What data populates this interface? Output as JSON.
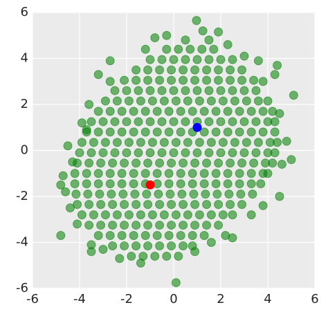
{
  "chart_data": {
    "type": "scatter",
    "xlim": [
      -6,
      6
    ],
    "ylim": [
      -6,
      6
    ],
    "xticks": [
      -6,
      -4,
      -2,
      0,
      2,
      4,
      6
    ],
    "yticks": [
      -6,
      -4,
      -2,
      0,
      2,
      4,
      6
    ],
    "grid": true,
    "alpha": 0.55,
    "series": [
      {
        "color": "#008000",
        "x": [
          -0.3,
          0.2,
          0.7,
          1.2,
          1.7,
          -1.0,
          -0.5,
          0,
          0.5,
          1,
          1.5,
          2,
          2.5,
          -1.6,
          -1.1,
          -0.6,
          -0.1,
          0.4,
          0.9,
          1.4,
          1.9,
          2.4,
          2.9,
          -2.1,
          -1.6,
          -1.1,
          -0.6,
          -0.1,
          0.4,
          0.9,
          1.4,
          1.9,
          2.4,
          2.9,
          3.4,
          -2.5,
          -2,
          -1.5,
          -1,
          -0.5,
          0,
          0.5,
          1,
          1.5,
          2,
          2.5,
          3,
          3.5,
          -2.9,
          -2.4,
          -1.9,
          -1.4,
          -0.9,
          -0.4,
          0.1,
          0.6,
          1.1,
          1.6,
          2.1,
          2.6,
          3.1,
          3.6,
          4.0,
          -3.2,
          -2.7,
          -2.2,
          -1.7,
          -1.2,
          -0.7,
          -0.2,
          0.3,
          0.8,
          1.3,
          1.8,
          2.3,
          2.8,
          3.3,
          3.8,
          4.2,
          -3.5,
          -3,
          -2.5,
          -2,
          -1.5,
          -1,
          -0.5,
          0,
          0.5,
          1,
          1.5,
          2,
          2.5,
          3,
          3.5,
          4,
          4.3,
          -3.7,
          -3.2,
          -2.7,
          -2.2,
          -1.7,
          -1.2,
          -0.7,
          -0.2,
          0.3,
          0.8,
          1.3,
          1.8,
          2.3,
          2.8,
          3.3,
          3.8,
          4.3,
          -3.9,
          -3.4,
          -2.9,
          -2.4,
          -1.9,
          -1.4,
          -0.9,
          -0.4,
          0.1,
          0.6,
          1.1,
          1.6,
          2.1,
          2.6,
          3.1,
          3.6,
          4.1,
          4.4,
          -4,
          -3.5,
          -3,
          -2.5,
          -2,
          -1.5,
          -1,
          -0.5,
          0,
          0.5,
          1,
          1.5,
          2,
          2.5,
          3,
          3.5,
          4,
          4.3,
          -4.1,
          -3.6,
          -3.1,
          -2.6,
          -2.1,
          -1.6,
          -1.1,
          -0.6,
          -0.1,
          0.4,
          0.9,
          1.4,
          1.9,
          2.4,
          2.9,
          3.4,
          3.9,
          4.2,
          -4.2,
          -3.7,
          -3.2,
          -2.7,
          -2.2,
          -1.7,
          -1.2,
          -0.7,
          -0.2,
          0.3,
          0.8,
          1.3,
          1.8,
          2.3,
          2.8,
          3.3,
          3.8,
          4.0,
          -4.2,
          -3.7,
          -3.2,
          -2.7,
          -2.2,
          -1.7,
          -1.2,
          -0.7,
          -0.2,
          0.3,
          0.8,
          1.3,
          1.8,
          2.3,
          2.8,
          3.3,
          3.7,
          -4.15,
          -3.65,
          -3.15,
          -2.65,
          -2.15,
          -1.65,
          -1.15,
          -0.65,
          -0.15,
          0.35,
          0.85,
          1.35,
          1.85,
          2.35,
          2.85,
          3.35,
          -4.1,
          -3.6,
          -3.1,
          -2.6,
          -2.1,
          -1.6,
          -1.1,
          -0.6,
          -0.1,
          0.4,
          0.9,
          1.4,
          1.9,
          2.4,
          2.9,
          -3.9,
          -3.4,
          -2.9,
          -2.4,
          -1.9,
          -1.4,
          -0.9,
          -0.4,
          0.1,
          0.6,
          1.1,
          1.6,
          2.1,
          2.5,
          -3.6,
          -3.1,
          -2.6,
          -2.1,
          -1.6,
          -1.1,
          -0.6,
          -0.1,
          0.4,
          0.9,
          1.4,
          1.9,
          -3.2,
          -2.7,
          -2.2,
          -1.7,
          -1.2,
          -0.7,
          -0.2,
          0.3,
          0.8,
          1.3,
          -2.6,
          -2.1,
          -1.6,
          -1.1,
          -0.6,
          -0.1,
          0.4,
          0.8,
          -1.8,
          -1.3,
          -0.8,
          -0.3,
          0.97,
          1.24,
          1.9,
          -0.3,
          0.5,
          2.3,
          -1.2,
          -2.7,
          3.0,
          3.6,
          4.4,
          -3.2,
          4.3,
          5.1,
          -3.6,
          4.5,
          -3.7,
          4.8,
          -4.5,
          -4.3,
          5.0,
          -4.7,
          4.6,
          -4.6,
          -4.8,
          4.5,
          -4.4,
          3.8,
          -4.1,
          3.3,
          -4.8,
          2.2,
          -3.5,
          1.6,
          -3.5,
          -2.3,
          -1.4,
          0.2,
          0.9,
          0.1,
          -3.0,
          -2.7,
          -3.9,
          3.8,
          2.5,
          -0.8,
          1.5
        ],
        "values": [
          4.4,
          4.4,
          4.4,
          4.4,
          4.4,
          3.95,
          3.95,
          3.95,
          3.95,
          3.95,
          3.95,
          3.95,
          3.95,
          3.5,
          3.5,
          3.5,
          3.5,
          3.5,
          3.5,
          3.5,
          3.5,
          3.5,
          3.5,
          3.05,
          3.05,
          3.05,
          3.05,
          3.05,
          3.05,
          3.05,
          3.05,
          3.05,
          3.05,
          3.05,
          3.05,
          2.6,
          2.6,
          2.6,
          2.6,
          2.6,
          2.6,
          2.6,
          2.6,
          2.6,
          2.6,
          2.6,
          2.6,
          2.6,
          2.15,
          2.15,
          2.15,
          2.15,
          2.15,
          2.15,
          2.15,
          2.15,
          2.15,
          2.15,
          2.15,
          2.15,
          2.15,
          2.15,
          2.15,
          1.7,
          1.7,
          1.7,
          1.7,
          1.7,
          1.7,
          1.7,
          1.7,
          1.7,
          1.7,
          1.7,
          1.7,
          1.7,
          1.7,
          1.7,
          1.7,
          1.25,
          1.25,
          1.25,
          1.25,
          1.25,
          1.25,
          1.25,
          1.25,
          1.25,
          1.25,
          1.25,
          1.25,
          1.25,
          1.25,
          1.25,
          1.25,
          1.25,
          0.8,
          0.8,
          0.8,
          0.8,
          0.8,
          0.8,
          0.8,
          0.8,
          0.8,
          0.8,
          0.8,
          0.8,
          0.8,
          0.8,
          0.8,
          0.8,
          0.8,
          0.35,
          0.35,
          0.35,
          0.35,
          0.35,
          0.35,
          0.35,
          0.35,
          0.35,
          0.35,
          0.35,
          0.35,
          0.35,
          0.35,
          0.35,
          0.35,
          0.35,
          0.35,
          -0.1,
          -0.1,
          -0.1,
          -0.1,
          -0.1,
          -0.1,
          -0.1,
          -0.1,
          -0.1,
          -0.1,
          -0.1,
          -0.1,
          -0.1,
          -0.1,
          -0.1,
          -0.1,
          -0.1,
          -0.1,
          -0.55,
          -0.55,
          -0.55,
          -0.55,
          -0.55,
          -0.55,
          -0.55,
          -0.55,
          -0.55,
          -0.55,
          -0.55,
          -0.55,
          -0.55,
          -0.55,
          -0.55,
          -0.55,
          -0.55,
          -0.55,
          -1.0,
          -1.0,
          -1.0,
          -1.0,
          -1.0,
          -1.0,
          -1.0,
          -1.0,
          -1.0,
          -1.0,
          -1.0,
          -1.0,
          -1.0,
          -1.0,
          -1.0,
          -1.0,
          -1.0,
          -1.0,
          -1.45,
          -1.45,
          -1.45,
          -1.45,
          -1.45,
          -1.45,
          -1.45,
          -1.45,
          -1.45,
          -1.45,
          -1.45,
          -1.45,
          -1.45,
          -1.45,
          -1.45,
          -1.45,
          -1.45,
          -1.9,
          -1.9,
          -1.9,
          -1.9,
          -1.9,
          -1.9,
          -1.9,
          -1.9,
          -1.9,
          -1.9,
          -1.9,
          -1.9,
          -1.9,
          -1.9,
          -1.9,
          -1.9,
          -2.35,
          -2.35,
          -2.35,
          -2.35,
          -2.35,
          -2.35,
          -2.35,
          -2.35,
          -2.35,
          -2.35,
          -2.35,
          -2.35,
          -2.35,
          -2.35,
          -2.35,
          -2.8,
          -2.8,
          -2.8,
          -2.8,
          -2.8,
          -2.8,
          -2.8,
          -2.8,
          -2.8,
          -2.8,
          -2.8,
          -2.8,
          -2.8,
          -2.8,
          -3.25,
          -3.25,
          -3.25,
          -3.25,
          -3.25,
          -3.25,
          -3.25,
          -3.25,
          -3.25,
          -3.25,
          -3.25,
          -3.25,
          -3.7,
          -3.7,
          -3.7,
          -3.7,
          -3.7,
          -3.7,
          -3.7,
          -3.7,
          -3.7,
          -3.7,
          -4.15,
          -4.15,
          -4.15,
          -4.15,
          -4.15,
          -4.15,
          -4.15,
          -4.15,
          -4.6,
          -4.6,
          -4.6,
          -4.6,
          5.65,
          5.2,
          5.15,
          5.0,
          4.8,
          4.6,
          4.4,
          3.9,
          4.1,
          3.9,
          3.7,
          3.3,
          3.3,
          2.4,
          2.0,
          1.6,
          0.9,
          0.4,
          0.2,
          -0.5,
          -0.4,
          -1.1,
          -0.6,
          -1.8,
          -1.5,
          -2.0,
          -2.5,
          -2.4,
          -3.2,
          -2.8,
          -3.7,
          -3.7,
          -4.1,
          -4.0,
          -4.4,
          -4.7,
          -4.9,
          -4.6,
          -4.4,
          -5.75,
          -4.3,
          3.0,
          1.2,
          3.0,
          -3.8,
          4.9,
          4.8
        ]
      },
      {
        "color": "#ff0000",
        "x": [
          -1
        ],
        "values": [
          -1.5
        ]
      },
      {
        "color": "#0000ff",
        "x": [
          1
        ],
        "values": [
          1
        ]
      }
    ]
  }
}
